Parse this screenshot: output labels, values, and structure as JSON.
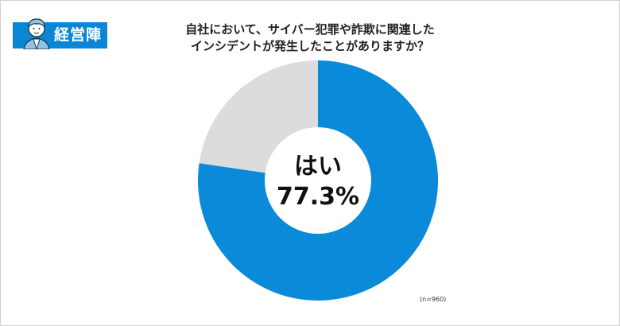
{
  "header": {
    "badge_label": "経営陣"
  },
  "chart_data": {
    "type": "pie",
    "donut": true,
    "title": "自社において、サイバー犯罪や詐欺に関連した\nインシデントが発生したことがありますか？",
    "title_lines": [
      "自社において、サイバー犯罪や詐欺に関連した",
      "インシデントが発生したことがありますか？"
    ],
    "slices": [
      {
        "label": "はい",
        "value": 77.3,
        "color": "#0a8ad8"
      },
      {
        "value": 22.7,
        "color": "#dcdcdc"
      }
    ],
    "center_label": "はい",
    "center_value": "77.3%",
    "note": "(n=960)"
  }
}
